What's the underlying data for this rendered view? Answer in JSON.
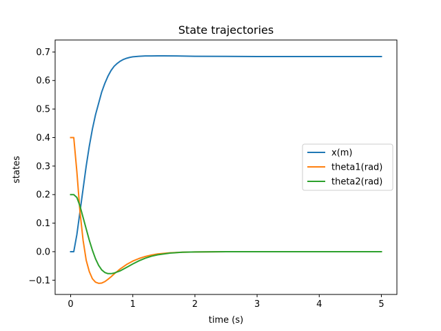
{
  "chart_data": {
    "type": "line",
    "title": "State trajectories",
    "xlabel": "time (s)",
    "ylabel": "states",
    "xlim": [
      -0.25,
      5.25
    ],
    "ylim": [
      -0.15,
      0.742
    ],
    "xticks": [
      0,
      1,
      2,
      3,
      4,
      5
    ],
    "yticks": [
      -0.1,
      0.0,
      0.1,
      0.2,
      0.3,
      0.4,
      0.5,
      0.6,
      0.7
    ],
    "xtick_labels": [
      "0",
      "1",
      "2",
      "3",
      "4",
      "5"
    ],
    "ytick_labels": [
      "−0.1",
      "0.0",
      "0.1",
      "0.2",
      "0.3",
      "0.4",
      "0.5",
      "0.6",
      "0.7"
    ],
    "grid": false,
    "legend_position": "center-right",
    "series": [
      {
        "name": "x(m)",
        "color": "#1f77b4",
        "x": [
          0,
          0.05,
          0.1,
          0.15,
          0.2,
          0.25,
          0.3,
          0.35,
          0.4,
          0.45,
          0.5,
          0.55,
          0.6,
          0.65,
          0.7,
          0.75,
          0.8,
          0.85,
          0.9,
          0.95,
          1.0,
          1.1,
          1.2,
          1.3,
          1.4,
          1.5,
          1.7,
          2.0,
          2.5,
          3.0,
          3.5,
          4.0,
          4.5,
          5.0
        ],
        "y": [
          0,
          0,
          0.06,
          0.14,
          0.22,
          0.3,
          0.37,
          0.43,
          0.48,
          0.52,
          0.56,
          0.59,
          0.615,
          0.635,
          0.65,
          0.66,
          0.668,
          0.674,
          0.678,
          0.681,
          0.683,
          0.685,
          0.686,
          0.686,
          0.6865,
          0.6865,
          0.686,
          0.685,
          0.6845,
          0.684,
          0.684,
          0.684,
          0.684,
          0.684
        ]
      },
      {
        "name": "theta1(rad)",
        "color": "#ff7f0e",
        "x": [
          0,
          0.05,
          0.1,
          0.15,
          0.2,
          0.25,
          0.3,
          0.35,
          0.4,
          0.45,
          0.5,
          0.55,
          0.6,
          0.65,
          0.7,
          0.8,
          0.9,
          1.0,
          1.1,
          1.2,
          1.3,
          1.4,
          1.6,
          1.8,
          2.0,
          2.5,
          3.0,
          4.0,
          5.0
        ],
        "y": [
          0.4,
          0.4,
          0.28,
          0.14,
          0.04,
          -0.03,
          -0.07,
          -0.095,
          -0.107,
          -0.111,
          -0.11,
          -0.105,
          -0.097,
          -0.088,
          -0.078,
          -0.06,
          -0.045,
          -0.033,
          -0.024,
          -0.017,
          -0.012,
          -0.008,
          -0.004,
          -0.002,
          -0.001,
          0,
          0,
          0,
          0
        ]
      },
      {
        "name": "theta2(rad)",
        "color": "#2ca02c",
        "x": [
          0,
          0.05,
          0.1,
          0.15,
          0.2,
          0.25,
          0.3,
          0.35,
          0.4,
          0.45,
          0.5,
          0.55,
          0.6,
          0.65,
          0.7,
          0.8,
          0.9,
          1.0,
          1.1,
          1.2,
          1.3,
          1.4,
          1.6,
          1.8,
          2.0,
          2.5,
          3.0,
          4.0,
          5.0
        ],
        "y": [
          0.2,
          0.2,
          0.19,
          0.16,
          0.12,
          0.08,
          0.04,
          0.005,
          -0.025,
          -0.048,
          -0.064,
          -0.073,
          -0.077,
          -0.077,
          -0.075,
          -0.067,
          -0.055,
          -0.043,
          -0.032,
          -0.023,
          -0.016,
          -0.011,
          -0.005,
          -0.002,
          -0.001,
          0,
          0,
          0,
          0
        ]
      }
    ]
  }
}
